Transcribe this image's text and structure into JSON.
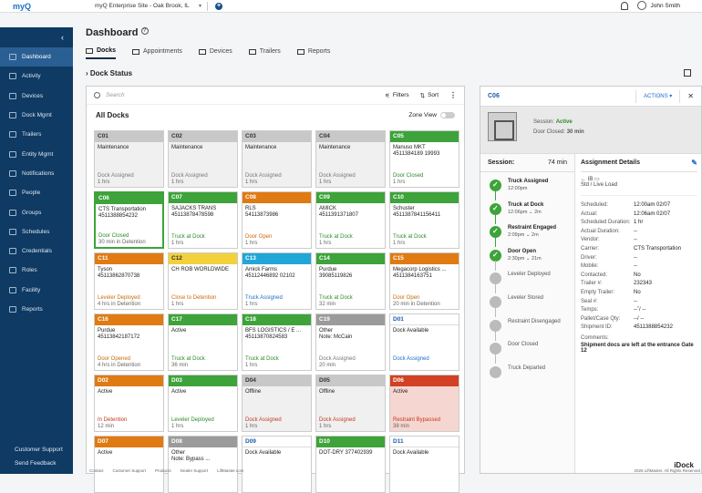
{
  "app": {
    "logo": "myQ",
    "site": "myQ Enterprise Site - Oak Brook, IL",
    "user": "John Smith"
  },
  "sidebar": {
    "items": [
      {
        "label": "Dashboard",
        "icon": "dashboard-icon",
        "active": true
      },
      {
        "label": "Activity",
        "icon": "activity-icon"
      },
      {
        "label": "Devices",
        "icon": "devices-icon"
      },
      {
        "label": "Dock Mgmt",
        "icon": "dock-icon"
      },
      {
        "label": "Trailers",
        "icon": "trailer-icon"
      },
      {
        "label": "Entity Mgmt",
        "icon": "entity-icon"
      },
      {
        "label": "Notifications",
        "icon": "notification-icon"
      },
      {
        "label": "People",
        "icon": "people-icon"
      },
      {
        "label": "Groups",
        "icon": "groups-icon"
      },
      {
        "label": "Schedules",
        "icon": "schedule-icon"
      },
      {
        "label": "Credentials",
        "icon": "key-icon"
      },
      {
        "label": "Roles",
        "icon": "roles-icon"
      },
      {
        "label": "Facility",
        "icon": "facility-icon"
      },
      {
        "label": "Reports",
        "icon": "reports-icon"
      }
    ],
    "support": "Customer Support",
    "feedback": "Send Feedback"
  },
  "page": {
    "title": "Dashboard",
    "tabs": [
      "Docks",
      "Appointments",
      "Devices",
      "Trailers",
      "Reports"
    ],
    "section": "Dock Status"
  },
  "toolbar": {
    "search_placeholder": "Search",
    "filters": "Filters",
    "sort": "Sort",
    "all_docks": "All Docks",
    "zone_view": "Zone View"
  },
  "docks": [
    {
      "id": "C01",
      "c": "gray",
      "l1": "Maintenance",
      "l2": "",
      "st": "Dock Assigned",
      "sc": "c-gray",
      "tm": "1 hrs"
    },
    {
      "id": "C02",
      "c": "gray",
      "l1": "Maintenance",
      "l2": "",
      "st": "Dock Assigned",
      "sc": "c-gray",
      "tm": "1 hrs"
    },
    {
      "id": "C03",
      "c": "gray",
      "l1": "Maintenance",
      "l2": "",
      "st": "Dock Assigned",
      "sc": "c-gray",
      "tm": "1 hrs"
    },
    {
      "id": "C04",
      "c": "gray",
      "l1": "Maintenance",
      "l2": "",
      "st": "Dock Assigned",
      "sc": "c-gray",
      "tm": "1 hrs"
    },
    {
      "id": "C05",
      "c": "green",
      "l1": "Manuso MKT",
      "l2": "4511384189 19993",
      "st": "Door Closed",
      "sc": "c-green",
      "tm": "1 hrs"
    },
    {
      "id": "C06",
      "c": "green sel",
      "l1": "CTS Transportation",
      "l2": "4511388854232",
      "st": "Door Closed",
      "sc": "c-green",
      "tm": "30 min in Detention"
    },
    {
      "id": "C07",
      "c": "green",
      "l1": "SAJACKS TRANS",
      "l2": "45113878478598",
      "st": "Truck at Dock",
      "sc": "c-green",
      "tm": "1 hrs"
    },
    {
      "id": "C08",
      "c": "orange",
      "l1": "RLS",
      "l2": "54113873986",
      "st": "Door Open",
      "sc": "c-orange",
      "tm": "1 hrs"
    },
    {
      "id": "C09",
      "c": "green",
      "l1": "AMICK",
      "l2": "4511391371807",
      "st": "Truck at Dock",
      "sc": "c-green",
      "tm": "1 hrs"
    },
    {
      "id": "C10",
      "c": "green",
      "l1": "Schuster",
      "l2": "4511387841156411",
      "st": "Truck at Dock",
      "sc": "c-green",
      "tm": "1 hrs"
    },
    {
      "id": "C11",
      "c": "orange",
      "l1": "Tyson",
      "l2": "45113862870738",
      "st": "Leveler Deployed",
      "sc": "c-orange",
      "tm": "4 hrs in Detention"
    },
    {
      "id": "C12",
      "c": "yellow",
      "l1": "CH ROB WORLDWIDE",
      "l2": "",
      "st": "Close to Detention",
      "sc": "c-orange",
      "tm": "1 hrs"
    },
    {
      "id": "C13",
      "c": "blue",
      "l1": "Amick Farms",
      "l2": "45112446892 02102",
      "st": "Truck Assigned",
      "sc": "c-blue",
      "tm": "1 hrs"
    },
    {
      "id": "C14",
      "c": "green",
      "l1": "Purdue",
      "l2": "39085119826",
      "st": "Truck at Dock",
      "sc": "c-green",
      "tm": "32 min"
    },
    {
      "id": "C15",
      "c": "orange",
      "l1": "Megacorp Logistics ...",
      "l2": "4511384163751",
      "st": "Door Open",
      "sc": "c-orange",
      "tm": "20 min in Detention"
    },
    {
      "id": "C16",
      "c": "orange",
      "l1": "Purdue",
      "l2": "4511384218717​2",
      "st": "Door Opened",
      "sc": "c-orange",
      "tm": "4 hrs in Detention"
    },
    {
      "id": "C17",
      "c": "green",
      "l1": "Active",
      "l2": "",
      "st": "Truck at Dock",
      "sc": "c-green",
      "tm": "36 min"
    },
    {
      "id": "C18",
      "c": "green",
      "l1": "BFS LOGISTICS / E ...",
      "l2": "45113870824583",
      "st": "Truck at Dock",
      "sc": "c-green",
      "tm": "1 hrs"
    },
    {
      "id": "C19",
      "c": "darkgray",
      "l1": "Other",
      "l2": "Note: McCain",
      "st": "Dock Assigned",
      "sc": "c-gray",
      "tm": "20 min"
    },
    {
      "id": "D01",
      "c": "white",
      "l1": "Dock Available",
      "l2": "",
      "st": "Dock Assigned",
      "sc": "c-blue",
      "tm": "",
      "l1c": "c-blue"
    },
    {
      "id": "D02",
      "c": "orange",
      "l1": "Active",
      "l2": "",
      "st": "In Detention",
      "sc": "c-red",
      "tm": "12 min"
    },
    {
      "id": "D03",
      "c": "green",
      "l1": "Active",
      "l2": "",
      "st": "Leveler Deployed",
      "sc": "c-green",
      "tm": "1 hrs"
    },
    {
      "id": "D04",
      "c": "gray",
      "l1": "Offline",
      "l2": "",
      "st": "Dock Assigned",
      "sc": "c-red",
      "tm": "1 hrs",
      "l1c": "c-gray"
    },
    {
      "id": "D05",
      "c": "gray",
      "l1": "Offline",
      "l2": "",
      "st": "Dock Assigned",
      "sc": "c-red",
      "tm": "1 hrs",
      "l1c": "c-gray"
    },
    {
      "id": "D06",
      "c": "red pink",
      "l1": "Active",
      "l2": "",
      "st": "Restraint Bypassed",
      "sc": "c-red",
      "tm": "38 min"
    },
    {
      "id": "D07",
      "c": "orange",
      "l1": "Active",
      "l2": "",
      "st": "",
      "sc": "",
      "tm": ""
    },
    {
      "id": "D08",
      "c": "darkgray",
      "l1": "Other",
      "l2": "Note: Bypass ...",
      "st": "",
      "sc": "",
      "tm": ""
    },
    {
      "id": "D09",
      "c": "white",
      "l1": "Dock Available",
      "l2": "",
      "st": "",
      "sc": "",
      "tm": "",
      "l1c": "c-blue"
    },
    {
      "id": "D10",
      "c": "green",
      "l1": "DOT-DRY 377402939",
      "l2": "",
      "st": "",
      "sc": "",
      "tm": ""
    },
    {
      "id": "D11",
      "c": "white",
      "l1": "Dock Available",
      "l2": "",
      "st": "",
      "sc": "",
      "tm": "",
      "l1c": "c-blue"
    }
  ],
  "detail": {
    "id": "C06",
    "actions": "ACTIONS",
    "session_label": "Session:",
    "session_status": "Active",
    "door_label": "Door Closed:",
    "door_time": "30 min",
    "session_hd": "Session:",
    "session_len": "74 min",
    "assign_hd": "Assignment Details",
    "steps": [
      {
        "label": "Truck Assigned",
        "time": "12:00pm",
        "done": true
      },
      {
        "label": "Truck at Dock",
        "time": "12:06pm ⌄ 2m",
        "done": true
      },
      {
        "label": "Restraint Engaged",
        "time": "2:09pm ⌄ 2m",
        "done": true
      },
      {
        "label": "Door Open",
        "time": "2:30pm ⌄ 21m",
        "done": true
      },
      {
        "label": "Leveler Deployed",
        "time": "",
        "done": false
      },
      {
        "label": "Leveler Stored",
        "time": "",
        "done": false
      },
      {
        "label": "Restraint Disengaged",
        "time": "",
        "done": false
      },
      {
        "label": "Door Closed",
        "time": "",
        "done": false
      },
      {
        "label": "Truck Departed",
        "time": "",
        "done": false
      }
    ],
    "trailer_in": "← IB",
    "trailer_type": "Std / Live Load",
    "fields": [
      {
        "k": "Scheduled:",
        "v": "12:00am 02/07"
      },
      {
        "k": "Actual:",
        "v": "12:06am 02/07"
      },
      {
        "k": "Scheduled Duration:",
        "v": "1 hr"
      },
      {
        "k": "Actual Duration:",
        "v": "--"
      },
      {
        "k": "Vendor:",
        "v": "--"
      },
      {
        "k": "Carrier:",
        "v": "CTS Transportation"
      },
      {
        "k": "Driver:",
        "v": "--"
      },
      {
        "k": "Mobile:",
        "v": "--"
      },
      {
        "k": "Contacted:",
        "v": "No"
      },
      {
        "k": "Trailer #:",
        "v": "232343"
      },
      {
        "k": "Empty Trailer:",
        "v": "No"
      },
      {
        "k": "Seal #:",
        "v": "--"
      },
      {
        "k": "Temps:",
        "v": "--˚/ --"
      },
      {
        "k": "Pallet/Case Qty:",
        "v": "--/ --"
      },
      {
        "k": "Shipment ID:",
        "v": "4511388854232"
      }
    ],
    "comments_label": "Comments:",
    "comments": "Shipment docs are left at the entrance Gate 12",
    "brand": "iDock"
  },
  "footer": [
    "Contact",
    "Customer Support",
    "Products",
    "Dealer Support",
    "LiftMaster.com"
  ],
  "copyright": "2025 LiftMaster. All Rights Reserved"
}
